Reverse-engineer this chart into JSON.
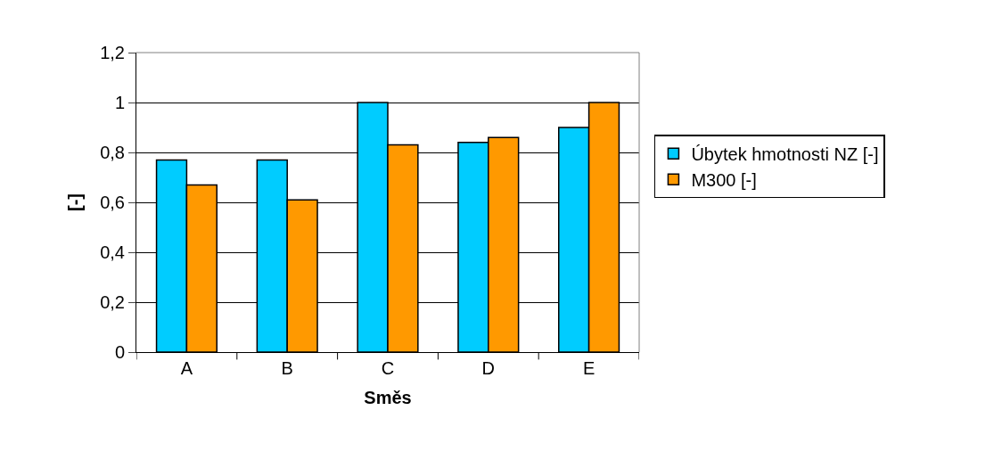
{
  "chart_data": {
    "type": "bar",
    "xlabel": "Směs",
    "ylabel": "[-]",
    "categories": [
      "A",
      "B",
      "C",
      "D",
      "E"
    ],
    "series": [
      {
        "name": "Úbytek hmotnosti NZ [-]",
        "color": "#00ccff",
        "values": [
          0.77,
          0.77,
          1.0,
          0.84,
          0.9
        ]
      },
      {
        "name": "M300 [-]",
        "color": "#ff9900",
        "values": [
          0.67,
          0.61,
          0.83,
          0.86,
          1.0
        ]
      }
    ],
    "ylim": [
      0,
      1.2
    ],
    "yticks": [
      {
        "value": 0,
        "label": "0"
      },
      {
        "value": 0.2,
        "label": "0,2"
      },
      {
        "value": 0.4,
        "label": "0,4"
      },
      {
        "value": 0.6,
        "label": "0,6"
      },
      {
        "value": 0.8,
        "label": "0,8"
      },
      {
        "value": 1,
        "label": "1"
      },
      {
        "value": 1.2,
        "label": "1,2"
      }
    ],
    "grid": "y",
    "legend": "right"
  }
}
